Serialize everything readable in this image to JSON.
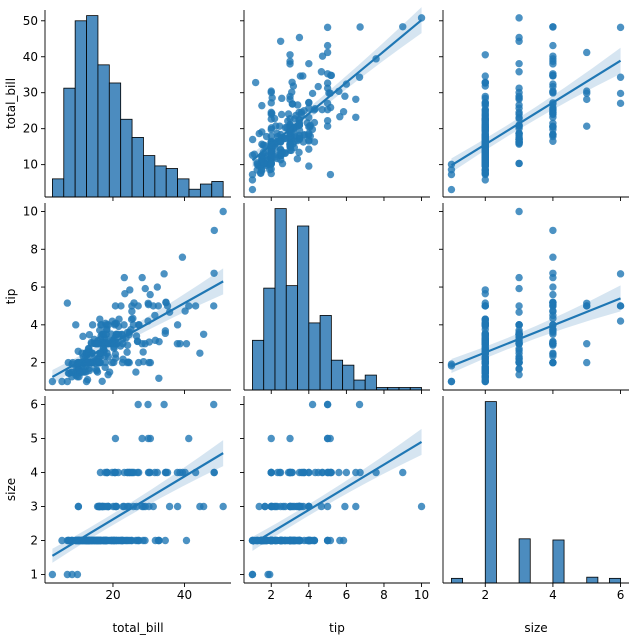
{
  "chart_data": {
    "type": "pairplot",
    "variables": [
      "total_bill",
      "tip",
      "size"
    ],
    "colors": {
      "main": "#1f77b4",
      "hist_fill": "#4c8cbf",
      "band": "#cfe0ef",
      "axis": "#000000"
    },
    "regressions": [
      {
        "x": "total_bill",
        "y": "tip",
        "x_range": [
          3.07,
          50.81
        ],
        "y_range": [
          1.24,
          6.3
        ]
      },
      {
        "x": "total_bill",
        "y": "size",
        "x_range": [
          3.07,
          50.81
        ],
        "y_range": [
          1.55,
          4.57
        ]
      },
      {
        "x": "tip",
        "y": "total_bill",
        "x_range": [
          1.0,
          10.0
        ],
        "y_range": [
          11.2,
          50.2
        ]
      },
      {
        "x": "tip",
        "y": "size",
        "x_range": [
          1.0,
          10.0
        ],
        "y_range": [
          1.9,
          4.9
        ]
      },
      {
        "x": "size",
        "y": "total_bill",
        "x_range": [
          1,
          6
        ],
        "y_range": [
          9.8,
          38.9
        ]
      },
      {
        "x": "size",
        "y": "tip",
        "x_range": [
          1,
          6
        ],
        "y_range": [
          1.82,
          5.4
        ]
      }
    ],
    "histograms": {
      "total_bill": {
        "edges": [
          3.07,
          6.25,
          9.43,
          12.62,
          15.8,
          18.98,
          22.16,
          25.34,
          28.53,
          31.71,
          34.89,
          38.07,
          41.26,
          44.44,
          47.62,
          50.81
        ],
        "counts": [
          7,
          42,
          68,
          70,
          51,
          44,
          30,
          23,
          16,
          12,
          11,
          7,
          3,
          5,
          6
        ]
      },
      "tip": {
        "edges": [
          1.0,
          1.6,
          2.2,
          2.8,
          3.4,
          4.0,
          4.6,
          5.2,
          5.8,
          6.4,
          7.0,
          7.6,
          8.2,
          8.8,
          9.4,
          10.0
        ],
        "counts": [
          20,
          41,
          73,
          42,
          66,
          27,
          30,
          12,
          10,
          4,
          6,
          1,
          1,
          1,
          1
        ]
      },
      "size": {
        "edges": [
          1.0,
          1.33,
          1.67,
          2.0,
          2.33,
          2.67,
          3.0,
          3.33,
          3.67,
          4.0,
          4.33,
          4.67,
          5.0,
          5.33,
          5.67,
          6.0
        ],
        "counts": [
          4,
          0,
          0,
          156,
          0,
          0,
          38,
          0,
          0,
          37,
          0,
          0,
          5,
          0,
          4
        ]
      }
    },
    "points": [
      [
        16.99,
        1.01,
        2
      ],
      [
        10.34,
        1.66,
        3
      ],
      [
        21.01,
        3.5,
        3
      ],
      [
        23.68,
        3.31,
        2
      ],
      [
        24.59,
        3.61,
        4
      ],
      [
        25.29,
        4.71,
        4
      ],
      [
        8.77,
        2.0,
        2
      ],
      [
        26.88,
        3.12,
        4
      ],
      [
        15.04,
        1.96,
        2
      ],
      [
        14.78,
        3.23,
        2
      ],
      [
        10.27,
        1.71,
        2
      ],
      [
        35.26,
        5.0,
        4
      ],
      [
        15.42,
        1.57,
        2
      ],
      [
        18.43,
        3.0,
        4
      ],
      [
        14.83,
        3.02,
        2
      ],
      [
        21.58,
        3.92,
        2
      ],
      [
        10.33,
        1.67,
        3
      ],
      [
        16.29,
        3.71,
        3
      ],
      [
        16.97,
        3.5,
        3
      ],
      [
        20.65,
        3.35,
        3
      ],
      [
        17.92,
        4.08,
        2
      ],
      [
        20.29,
        2.75,
        2
      ],
      [
        15.77,
        2.23,
        2
      ],
      [
        39.42,
        7.58,
        4
      ],
      [
        19.82,
        3.18,
        2
      ],
      [
        17.81,
        2.34,
        4
      ],
      [
        13.37,
        2.0,
        2
      ],
      [
        12.69,
        2.0,
        2
      ],
      [
        21.7,
        4.3,
        2
      ],
      [
        19.65,
        3.0,
        2
      ],
      [
        9.55,
        1.45,
        2
      ],
      [
        18.35,
        2.5,
        4
      ],
      [
        15.06,
        3.0,
        2
      ],
      [
        20.69,
        2.45,
        4
      ],
      [
        17.78,
        3.27,
        2
      ],
      [
        24.06,
        3.6,
        3
      ],
      [
        16.31,
        2.0,
        3
      ],
      [
        16.93,
        3.07,
        3
      ],
      [
        18.69,
        2.31,
        3
      ],
      [
        31.27,
        5.0,
        3
      ],
      [
        16.04,
        2.24,
        3
      ],
      [
        17.46,
        2.54,
        2
      ],
      [
        13.94,
        3.06,
        2
      ],
      [
        9.68,
        1.32,
        2
      ],
      [
        30.4,
        5.6,
        4
      ],
      [
        18.29,
        3.0,
        2
      ],
      [
        22.23,
        5.0,
        2
      ],
      [
        32.4,
        6.0,
        4
      ],
      [
        28.55,
        2.05,
        3
      ],
      [
        18.04,
        3.0,
        2
      ],
      [
        12.54,
        2.5,
        2
      ],
      [
        10.29,
        2.6,
        2
      ],
      [
        34.81,
        5.2,
        4
      ],
      [
        9.94,
        1.56,
        2
      ],
      [
        25.56,
        4.34,
        4
      ],
      [
        19.49,
        3.51,
        2
      ],
      [
        38.01,
        3.0,
        4
      ],
      [
        26.41,
        1.5,
        2
      ],
      [
        11.24,
        1.76,
        2
      ],
      [
        48.27,
        6.73,
        4
      ],
      [
        20.29,
        3.21,
        2
      ],
      [
        13.81,
        2.0,
        2
      ],
      [
        11.02,
        1.98,
        2
      ],
      [
        18.29,
        3.76,
        4
      ],
      [
        17.59,
        2.64,
        3
      ],
      [
        20.08,
        3.15,
        3
      ],
      [
        16.45,
        2.47,
        2
      ],
      [
        3.07,
        1.0,
        1
      ],
      [
        20.23,
        2.01,
        2
      ],
      [
        15.01,
        2.09,
        2
      ],
      [
        12.02,
        1.97,
        2
      ],
      [
        17.07,
        3.0,
        3
      ],
      [
        26.86,
        3.14,
        2
      ],
      [
        25.28,
        5.0,
        2
      ],
      [
        14.73,
        2.2,
        2
      ],
      [
        10.51,
        1.25,
        2
      ],
      [
        17.92,
        3.08,
        2
      ],
      [
        27.2,
        4.0,
        4
      ],
      [
        22.76,
        3.0,
        2
      ],
      [
        17.29,
        2.71,
        2
      ],
      [
        19.44,
        3.0,
        2
      ],
      [
        16.66,
        3.4,
        2
      ],
      [
        10.07,
        1.83,
        1
      ],
      [
        32.68,
        5.0,
        2
      ],
      [
        15.98,
        2.03,
        2
      ],
      [
        34.83,
        5.17,
        4
      ],
      [
        13.03,
        2.0,
        2
      ],
      [
        18.28,
        4.0,
        2
      ],
      [
        24.71,
        5.85,
        2
      ],
      [
        21.16,
        3.0,
        2
      ],
      [
        28.97,
        3.0,
        2
      ],
      [
        22.49,
        3.5,
        2
      ],
      [
        5.75,
        1.0,
        2
      ],
      [
        16.32,
        4.3,
        2
      ],
      [
        22.75,
        3.25,
        2
      ],
      [
        40.17,
        4.73,
        4
      ],
      [
        27.28,
        4.0,
        2
      ],
      [
        12.03,
        1.5,
        2
      ],
      [
        21.01,
        3.0,
        2
      ],
      [
        12.46,
        1.5,
        2
      ],
      [
        11.35,
        2.5,
        2
      ],
      [
        15.38,
        3.0,
        2
      ],
      [
        44.3,
        2.5,
        3
      ],
      [
        22.42,
        3.48,
        2
      ],
      [
        20.92,
        4.08,
        2
      ],
      [
        15.36,
        1.64,
        2
      ],
      [
        20.49,
        4.06,
        2
      ],
      [
        25.21,
        4.29,
        2
      ],
      [
        18.24,
        3.76,
        2
      ],
      [
        14.31,
        4.0,
        2
      ],
      [
        14.0,
        3.0,
        2
      ],
      [
        7.25,
        1.0,
        1
      ],
      [
        38.07,
        4.0,
        3
      ],
      [
        23.95,
        2.55,
        2
      ],
      [
        25.71,
        4.0,
        3
      ],
      [
        17.31,
        3.5,
        2
      ],
      [
        29.93,
        5.07,
        4
      ],
      [
        10.65,
        1.5,
        2
      ],
      [
        12.43,
        1.8,
        2
      ],
      [
        24.08,
        2.92,
        4
      ],
      [
        11.69,
        2.31,
        2
      ],
      [
        13.42,
        1.68,
        2
      ],
      [
        14.26,
        2.5,
        2
      ],
      [
        15.95,
        2.0,
        2
      ],
      [
        12.48,
        2.52,
        2
      ],
      [
        29.8,
        4.2,
        6
      ],
      [
        8.52,
        1.48,
        2
      ],
      [
        14.52,
        2.0,
        2
      ],
      [
        11.38,
        2.0,
        2
      ],
      [
        22.82,
        2.18,
        3
      ],
      [
        19.08,
        1.5,
        2
      ],
      [
        20.27,
        2.83,
        2
      ],
      [
        11.17,
        1.5,
        2
      ],
      [
        12.26,
        2.0,
        2
      ],
      [
        18.26,
        3.25,
        2
      ],
      [
        8.51,
        1.25,
        2
      ],
      [
        10.33,
        2.0,
        2
      ],
      [
        14.15,
        2.0,
        2
      ],
      [
        16.0,
        2.0,
        2
      ],
      [
        13.16,
        2.75,
        2
      ],
      [
        17.47,
        3.5,
        2
      ],
      [
        34.3,
        6.7,
        6
      ],
      [
        41.19,
        5.0,
        5
      ],
      [
        27.05,
        5.0,
        6
      ],
      [
        16.43,
        2.3,
        2
      ],
      [
        8.35,
        1.5,
        2
      ],
      [
        18.64,
        1.36,
        3
      ],
      [
        11.87,
        1.63,
        2
      ],
      [
        9.78,
        1.73,
        2
      ],
      [
        7.51,
        2.0,
        2
      ],
      [
        14.07,
        2.5,
        2
      ],
      [
        13.13,
        2.0,
        2
      ],
      [
        17.26,
        2.74,
        3
      ],
      [
        24.55,
        2.0,
        4
      ],
      [
        19.77,
        2.0,
        4
      ],
      [
        29.85,
        5.14,
        5
      ],
      [
        48.17,
        5.0,
        6
      ],
      [
        25.0,
        3.75,
        4
      ],
      [
        13.39,
        2.61,
        2
      ],
      [
        16.49,
        2.0,
        4
      ],
      [
        21.5,
        3.5,
        4
      ],
      [
        12.66,
        2.5,
        2
      ],
      [
        16.21,
        2.0,
        3
      ],
      [
        13.81,
        2.0,
        2
      ],
      [
        17.51,
        3.0,
        2
      ],
      [
        24.52,
        3.48,
        3
      ],
      [
        20.76,
        2.24,
        2
      ],
      [
        31.71,
        4.5,
        4
      ],
      [
        10.59,
        1.61,
        2
      ],
      [
        10.63,
        2.0,
        2
      ],
      [
        50.81,
        10.0,
        3
      ],
      [
        15.81,
        3.16,
        2
      ],
      [
        7.25,
        5.15,
        2
      ],
      [
        31.85,
        3.18,
        2
      ],
      [
        16.82,
        4.0,
        2
      ],
      [
        32.9,
        3.11,
        2
      ],
      [
        17.89,
        2.0,
        2
      ],
      [
        14.48,
        2.0,
        2
      ],
      [
        9.6,
        4.0,
        2
      ],
      [
        34.63,
        3.55,
        2
      ],
      [
        34.65,
        3.68,
        4
      ],
      [
        23.33,
        5.65,
        2
      ],
      [
        45.35,
        3.5,
        3
      ],
      [
        23.17,
        6.5,
        4
      ],
      [
        40.55,
        3.0,
        2
      ],
      [
        20.69,
        5.0,
        5
      ],
      [
        20.9,
        3.5,
        3
      ],
      [
        30.46,
        2.0,
        5
      ],
      [
        18.15,
        3.5,
        3
      ],
      [
        23.1,
        4.0,
        3
      ],
      [
        15.69,
        1.5,
        2
      ],
      [
        19.81,
        4.19,
        2
      ],
      [
        28.44,
        2.56,
        2
      ],
      [
        15.48,
        2.02,
        2
      ],
      [
        16.58,
        4.0,
        2
      ],
      [
        7.56,
        1.44,
        2
      ],
      [
        10.34,
        2.0,
        2
      ],
      [
        43.11,
        5.0,
        4
      ],
      [
        13.0,
        2.0,
        2
      ],
      [
        13.51,
        2.0,
        2
      ],
      [
        18.71,
        4.0,
        3
      ],
      [
        12.74,
        2.01,
        2
      ],
      [
        13.0,
        2.0,
        2
      ],
      [
        16.4,
        2.5,
        2
      ],
      [
        20.53,
        4.0,
        4
      ],
      [
        16.47,
        3.23,
        3
      ],
      [
        26.59,
        3.41,
        3
      ],
      [
        38.73,
        3.0,
        4
      ],
      [
        24.27,
        2.03,
        2
      ],
      [
        12.76,
        2.23,
        2
      ],
      [
        30.06,
        2.0,
        3
      ],
      [
        25.89,
        5.16,
        4
      ],
      [
        48.33,
        9.0,
        4
      ],
      [
        13.27,
        2.5,
        2
      ],
      [
        28.17,
        6.5,
        3
      ],
      [
        12.9,
        1.1,
        2
      ],
      [
        28.15,
        3.0,
        5
      ],
      [
        11.59,
        1.5,
        2
      ],
      [
        7.74,
        1.44,
        2
      ],
      [
        30.14,
        3.09,
        4
      ],
      [
        12.16,
        2.2,
        2
      ],
      [
        13.42,
        3.48,
        2
      ],
      [
        8.58,
        1.92,
        1
      ],
      [
        15.98,
        3.0,
        3
      ],
      [
        13.42,
        1.58,
        2
      ],
      [
        16.27,
        2.5,
        2
      ],
      [
        10.09,
        2.0,
        2
      ],
      [
        20.45,
        3.0,
        4
      ],
      [
        13.28,
        2.72,
        2
      ],
      [
        22.12,
        2.88,
        2
      ],
      [
        24.01,
        2.0,
        4
      ],
      [
        15.69,
        3.0,
        3
      ],
      [
        11.61,
        3.39,
        2
      ],
      [
        10.77,
        1.47,
        2
      ],
      [
        15.53,
        3.0,
        2
      ],
      [
        10.07,
        1.25,
        2
      ],
      [
        12.6,
        1.0,
        2
      ],
      [
        32.83,
        1.17,
        2
      ],
      [
        35.83,
        4.67,
        3
      ],
      [
        29.03,
        5.92,
        3
      ],
      [
        27.18,
        2.0,
        2
      ],
      [
        22.67,
        2.0,
        2
      ],
      [
        17.82,
        1.75,
        2
      ],
      [
        18.78,
        3.0,
        2
      ]
    ]
  },
  "axes": {
    "total_bill": {
      "label": "total_bill",
      "range": [
        1.0,
        53.0
      ],
      "ticks": [
        {
          "v": 20,
          "t": "20"
        },
        {
          "v": 40,
          "t": "40"
        }
      ],
      "yticks": [
        {
          "v": 10,
          "t": "10"
        },
        {
          "v": 20,
          "t": "20"
        },
        {
          "v": 30,
          "t": "30"
        },
        {
          "v": 40,
          "t": "40"
        },
        {
          "v": 50,
          "t": "50"
        }
      ]
    },
    "tip": {
      "label": "tip",
      "range": [
        0.55,
        10.45
      ],
      "ticks": [
        {
          "v": 2,
          "t": "2"
        },
        {
          "v": 4,
          "t": "4"
        },
        {
          "v": 6,
          "t": "6"
        },
        {
          "v": 8,
          "t": "8"
        },
        {
          "v": 10,
          "t": "10"
        }
      ],
      "yticks": [
        {
          "v": 2,
          "t": "2"
        },
        {
          "v": 4,
          "t": "4"
        },
        {
          "v": 6,
          "t": "6"
        },
        {
          "v": 8,
          "t": "8"
        },
        {
          "v": 10,
          "t": "10"
        }
      ]
    },
    "size": {
      "label": "size",
      "range": [
        0.75,
        6.25
      ],
      "ticks": [
        {
          "v": 2,
          "t": "2"
        },
        {
          "v": 4,
          "t": "4"
        },
        {
          "v": 6,
          "t": "6"
        }
      ],
      "yticks": [
        {
          "v": 1,
          "t": "1"
        },
        {
          "v": 2,
          "t": "2"
        },
        {
          "v": 3,
          "t": "3"
        },
        {
          "v": 4,
          "t": "4"
        },
        {
          "v": 5,
          "t": "5"
        },
        {
          "v": 6,
          "t": "6"
        }
      ]
    }
  }
}
